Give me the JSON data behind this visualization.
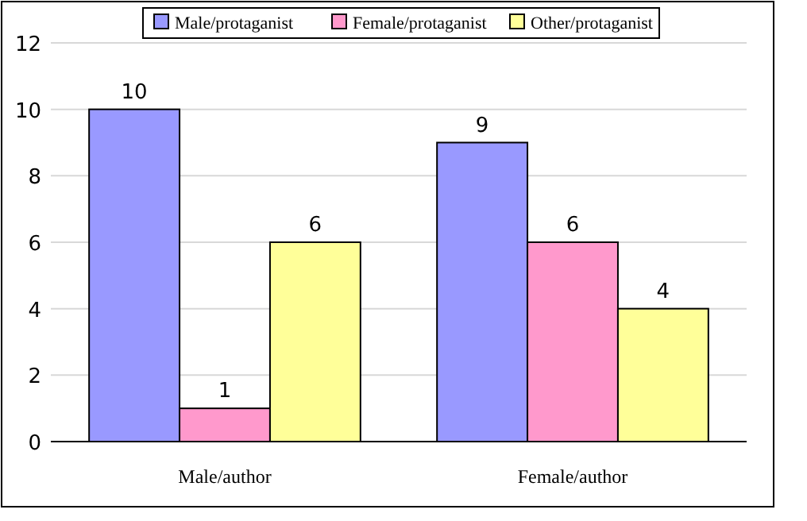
{
  "chart_data": {
    "type": "bar",
    "categories": [
      "Male/author",
      "Female/author"
    ],
    "series": [
      {
        "name": "Male/protaganist",
        "color": "#9999ff",
        "values": [
          10,
          9
        ]
      },
      {
        "name": "Female/protaganist",
        "color": "#ff99cc",
        "values": [
          1,
          6
        ]
      },
      {
        "name": "Other/protaganist",
        "color": "#ffff99",
        "values": [
          6,
          4
        ]
      }
    ],
    "ylim": [
      0,
      12
    ],
    "yticks": [
      0,
      2,
      4,
      6,
      8,
      10,
      12
    ],
    "grid": "y",
    "legend": "top",
    "data_labels": true
  }
}
